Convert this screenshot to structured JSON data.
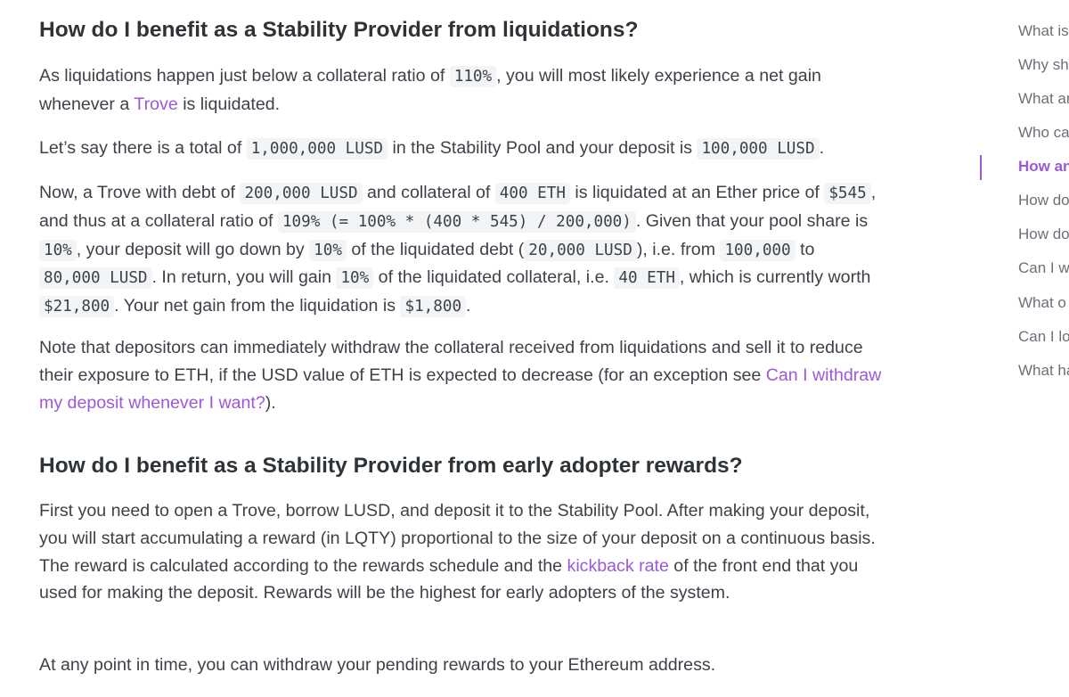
{
  "section1": {
    "heading": "How do I benefit as a Stability Provider from liquidations?",
    "p1": {
      "t1": "As liquidations happen just below a collateral ratio of ",
      "c1": "110%",
      "t2": ", you will most likely experience a net gain whenever a ",
      "link": "Trove",
      "t3": " is liquidated."
    },
    "p2": {
      "t1": "Let’s say there is a total of ",
      "c1": "1,000,000 LUSD",
      "t2": " in the Stability Pool and your deposit is ",
      "c2": "100,000 LUSD",
      "t3": "."
    },
    "p3": {
      "t1": "Now, a Trove with debt of ",
      "c1": "200,000 LUSD",
      "t2": " and collateral of ",
      "c2": "400 ETH",
      "t3": " is liquidated at an Ether price of ",
      "c3": "$545",
      "t4": ", and thus at a collateral ratio of ",
      "c4": "109% (= 100% * (400 * 545) / 200,000)",
      "t5": ". Given that your pool share is ",
      "c5": "10%",
      "t6": ", your deposit will go down by ",
      "c6": "10%",
      "t7": " of the liquidated debt (",
      "c7": "20,000 LUSD",
      "t8": "), i.e. from ",
      "c8": "100,000",
      "t9": " to ",
      "c9": "80,000 LUSD",
      "t10": ". In return, you will gain ",
      "c10": "10%",
      "t11": " of the liquidated collateral, i.e. ",
      "c11": "40 ETH",
      "t12": ", which is currently worth ",
      "c12": "$21,800",
      "t13": ". Your net gain from the liquidation is ",
      "c13": "$1,800",
      "t14": "."
    },
    "p4": {
      "t1": "Note that depositors can immediately withdraw the collateral received from liquidations and sell it to reduce their exposure to ETH, if the USD value of ETH is expected to decrease (for an exception see ",
      "link": "Can I withdraw my deposit whenever I want?",
      "t2": ")."
    }
  },
  "section2": {
    "heading": "How do I benefit as a Stability Provider from early adopter rewards?",
    "p1": {
      "t1": "First you need to open a Trove, borrow LUSD, and deposit it to the Stability Pool. After making your deposit, you will start accumulating a reward (in LQTY) proportional to the size of your deposit on a continuous basis. The reward is calculated according to the rewards schedule and the ",
      "link": "kickback rate",
      "t2": " of the front end that you used for making the deposit. Rewards will be the highest for early adopters of the system."
    },
    "p2": "At any point in time, you can withdraw your pending rewards to your Ethereum address."
  },
  "toc": {
    "items": [
      "What is",
      "Why sh",
      "What ar",
      "Who ca",
      "How an",
      "How do",
      "How do",
      "Can I w",
      "What o",
      "Can I lo",
      "What ha"
    ],
    "active_index": 4
  },
  "colors": {
    "link": "#9b59d8",
    "text": "#3d4148",
    "heading": "#2e3338",
    "code_bg": "#f3f4f6"
  }
}
